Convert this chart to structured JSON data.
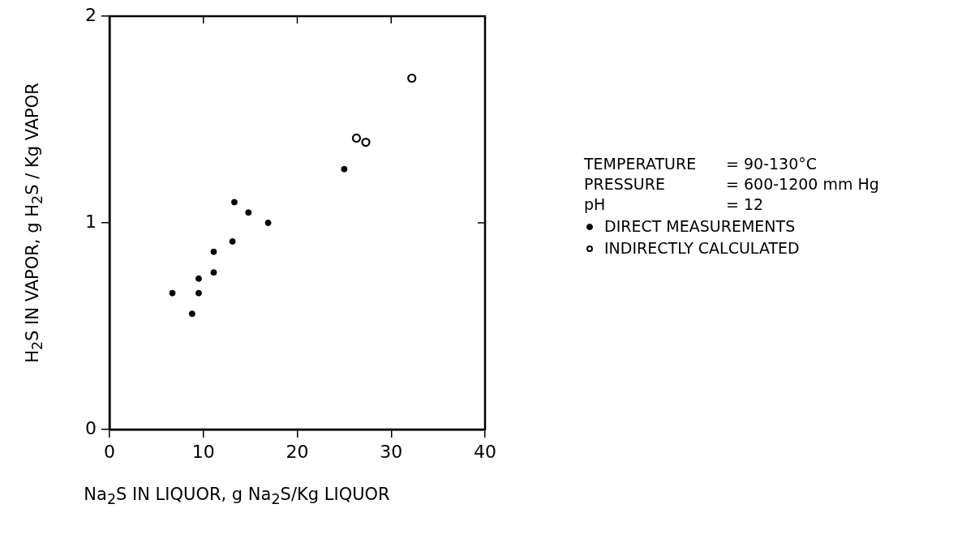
{
  "chart_data": {
    "type": "scatter",
    "xlabel": "Na$_{2}$S IN LIQUOR, g Na$_{2}$S/Kg LIQUOR",
    "ylabel": "H$_{2}$S IN VAPOR, g H$_{2}$S / Kg VAPOR",
    "xlim": [
      0,
      40
    ],
    "xticks": [
      0,
      10,
      20,
      30,
      40
    ],
    "ylim": [
      0,
      2
    ],
    "yticks": [
      0,
      1,
      2
    ],
    "grid": false,
    "legend": "right",
    "annotations": [
      "TEMPERATURE = 90-130°C",
      "PRESSURE = 600-1200 mm Hg",
      "pH = 12"
    ],
    "series": [
      {
        "name": "DIRECT MEASUREMENTS",
        "color": "#000000",
        "marker": "circle",
        "x": [
          6.7,
          8.8,
          9.5,
          9.5,
          11.1,
          11.1,
          13.1,
          13.3,
          14.8,
          16.9,
          25.0
        ],
        "values": [
          0.66,
          0.56,
          0.73,
          0.66,
          0.86,
          0.76,
          0.91,
          1.1,
          1.05,
          1.0,
          1.26
        ]
      },
      {
        "name": "INDIRECTLY CALCULATED",
        "color": "#000000",
        "marker": "circle-open",
        "x": [
          26.3,
          27.3,
          32.2
        ],
        "values": [
          1.41,
          1.39,
          1.7
        ]
      }
    ]
  }
}
